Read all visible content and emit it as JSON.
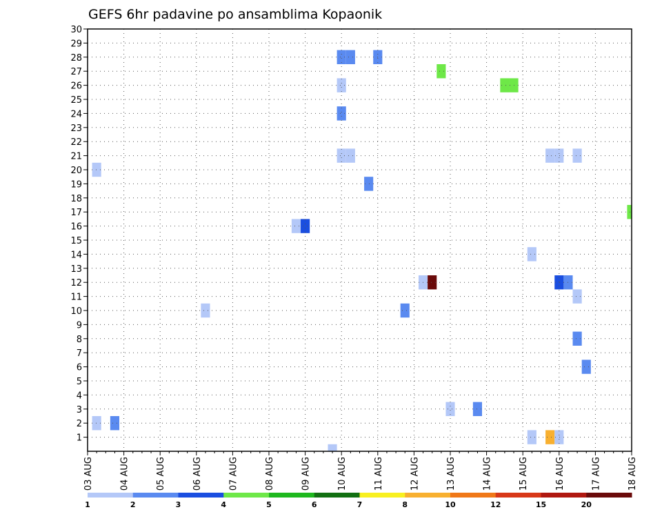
{
  "chart_data": {
    "type": "heatmap",
    "title": "GEFS 6hr padavine po ansamblima Kopaonik",
    "xlabel": "",
    "ylabel": "",
    "x_ticks": [
      "03 AUG",
      "04 AUG",
      "05 AUG",
      "06 AUG",
      "07 AUG",
      "08 AUG",
      "09 AUG",
      "10 AUG",
      "11 AUG",
      "12 AUG",
      "13 AUG",
      "14 AUG",
      "15 AUG",
      "16 AUG",
      "17 AUG",
      "18 AUG"
    ],
    "x_range_days": [
      0,
      15
    ],
    "y_ticks": [
      "1",
      "2",
      "3",
      "4",
      "5",
      "6",
      "7",
      "8",
      "9",
      "10",
      "11",
      "12",
      "13",
      "14",
      "15",
      "16",
      "17",
      "18",
      "19",
      "20",
      "21",
      "22",
      "23",
      "24",
      "25",
      "26",
      "27",
      "28",
      "29",
      "30"
    ],
    "y_range": [
      0,
      30
    ],
    "grid": true,
    "colorbar": {
      "levels": [
        "1",
        "2",
        "3",
        "4",
        "5",
        "6",
        "7",
        "8",
        "10",
        "12",
        "15",
        "20"
      ],
      "colors": [
        "#b4c8f8",
        "#5a8af0",
        "#1a4ee0",
        "#6ee848",
        "#1eb81e",
        "#127012",
        "#f8f020",
        "#f8b030",
        "#f07818",
        "#d83818",
        "#b01810",
        "#6a0a0a"
      ]
    },
    "cells": [
      {
        "member": 1,
        "day": 12.25,
        "color": "#b4c8f8"
      },
      {
        "member": 1,
        "day": 12.75,
        "color": "#f8b030"
      },
      {
        "member": 1,
        "day": 13.0,
        "color": "#b4c8f8"
      },
      {
        "member": 2,
        "day": 0.25,
        "color": "#b4c8f8"
      },
      {
        "member": 2,
        "day": 0.75,
        "color": "#5a8af0"
      },
      {
        "member": 3,
        "day": 10.0,
        "color": "#b4c8f8"
      },
      {
        "member": 3,
        "day": 10.75,
        "color": "#5a8af0"
      },
      {
        "member": 6,
        "day": 13.75,
        "color": "#5a8af0"
      },
      {
        "member": 8,
        "day": 13.5,
        "color": "#5a8af0"
      },
      {
        "member": 10,
        "day": 3.25,
        "color": "#b4c8f8"
      },
      {
        "member": 10,
        "day": 8.75,
        "color": "#5a8af0"
      },
      {
        "member": 11,
        "day": 13.5,
        "color": "#b4c8f8"
      },
      {
        "member": 12,
        "day": 9.25,
        "color": "#b4c8f8"
      },
      {
        "member": 12,
        "day": 9.5,
        "color": "#6a0a0a"
      },
      {
        "member": 12,
        "day": 13.0,
        "color": "#1a4ee0"
      },
      {
        "member": 12,
        "day": 13.25,
        "color": "#5a8af0"
      },
      {
        "member": 14,
        "day": 12.25,
        "color": "#b4c8f8"
      },
      {
        "member": 16,
        "day": 5.75,
        "color": "#b4c8f8"
      },
      {
        "member": 16,
        "day": 6.0,
        "color": "#1a4ee0"
      },
      {
        "member": 17,
        "day": 15.0,
        "color": "#6ee848"
      },
      {
        "member": 19,
        "day": 7.75,
        "color": "#5a8af0"
      },
      {
        "member": 20,
        "day": 0.25,
        "color": "#b4c8f8"
      },
      {
        "member": 21,
        "day": 7.0,
        "color": "#b4c8f8"
      },
      {
        "member": 21,
        "day": 7.25,
        "color": "#b4c8f8"
      },
      {
        "member": 21,
        "day": 12.75,
        "color": "#b4c8f8"
      },
      {
        "member": 21,
        "day": 13.0,
        "color": "#b4c8f8"
      },
      {
        "member": 21,
        "day": 13.5,
        "color": "#b4c8f8"
      },
      {
        "member": 24,
        "day": 7.0,
        "color": "#5a8af0"
      },
      {
        "member": 26,
        "day": 7.0,
        "color": "#b4c8f8"
      },
      {
        "member": 26,
        "day": 11.5,
        "color": "#6ee848"
      },
      {
        "member": 26,
        "day": 11.75,
        "color": "#6ee848"
      },
      {
        "member": 27,
        "day": 9.75,
        "color": "#6ee848"
      },
      {
        "member": 28,
        "day": 7.0,
        "color": "#5a8af0"
      },
      {
        "member": 28,
        "day": 7.25,
        "color": "#5a8af0"
      },
      {
        "member": 28,
        "day": 8.0,
        "color": "#5a8af0"
      },
      {
        "member": 0,
        "day": 6.75,
        "color": "#b4c8f8"
      }
    ]
  }
}
